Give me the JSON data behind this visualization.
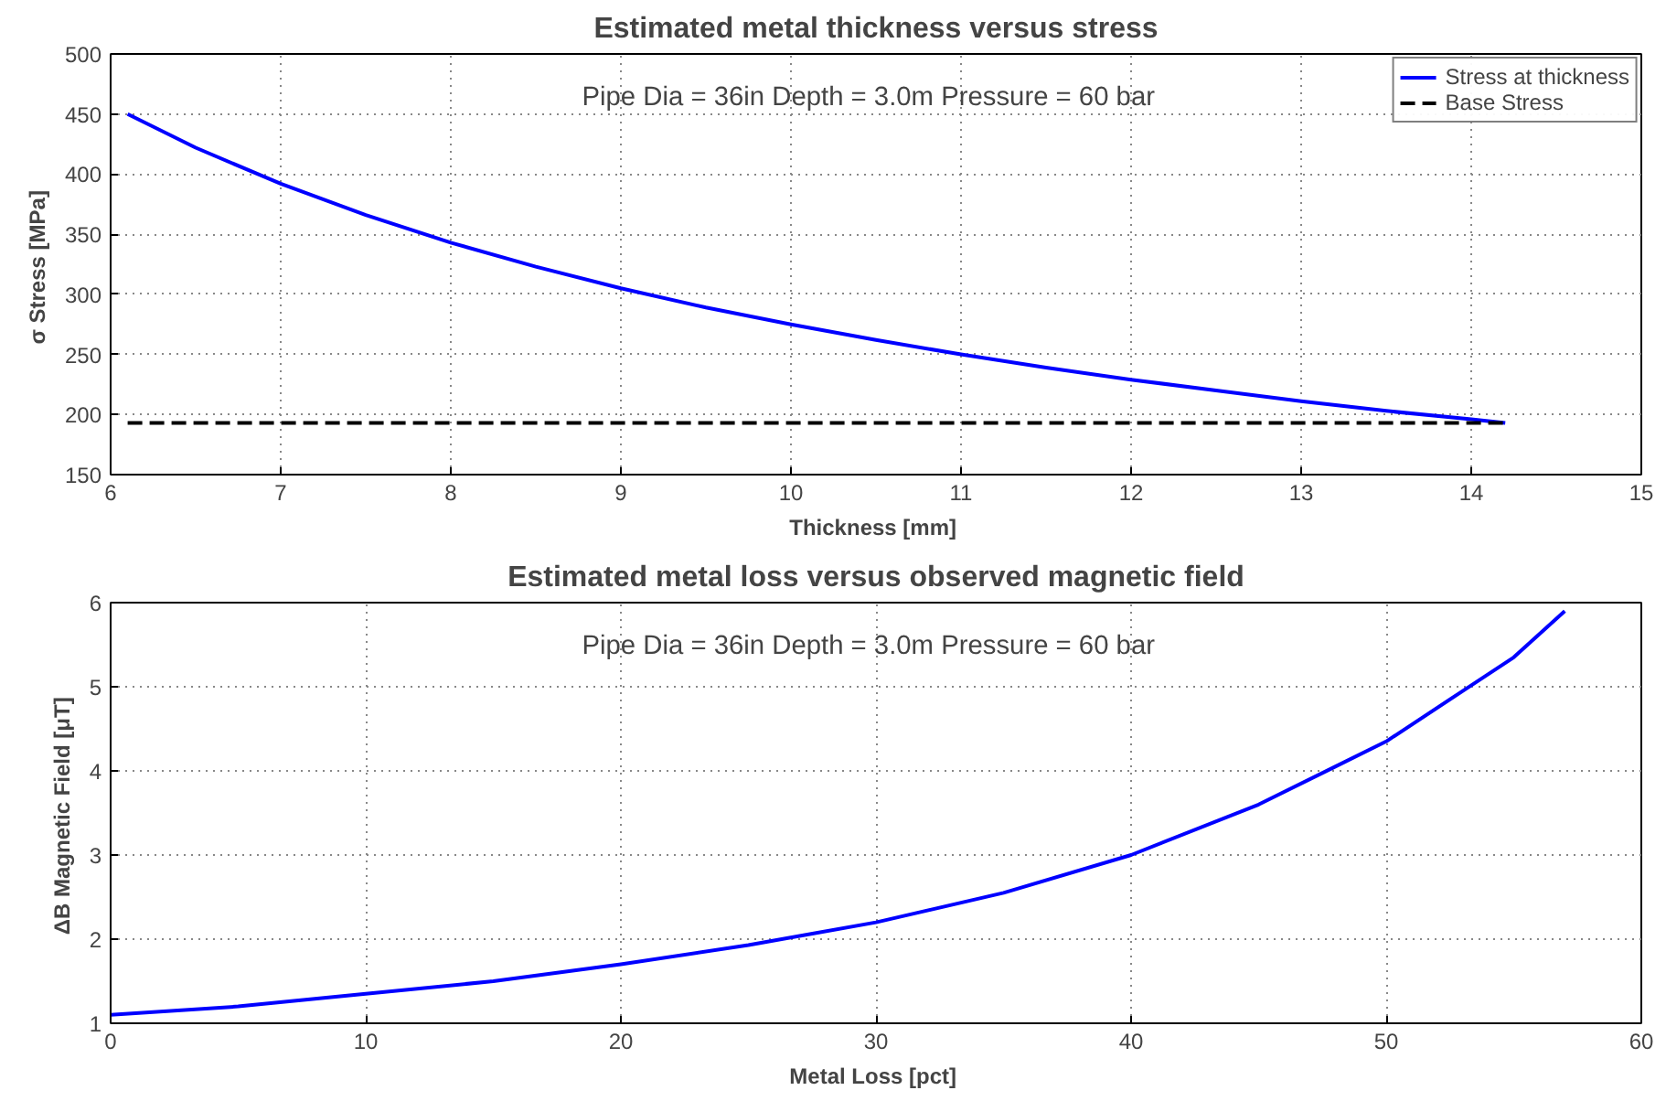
{
  "chart_data": [
    {
      "type": "line",
      "title": "Estimated metal thickness versus stress",
      "xlabel": "Thickness  [mm]",
      "ylabel": "σ Stress  [MPa]",
      "annotations": [
        "Pipe Dia = 36in   Depth = 3.0m   Pressure = 60 bar"
      ],
      "series": [
        {
          "name": "Stress at thickness",
          "color": "#0000ff",
          "line_style": "solid",
          "x": [
            6.1,
            6.5,
            7,
            7.5,
            8,
            8.5,
            9,
            9.5,
            10,
            10.5,
            11,
            11.5,
            12,
            12.5,
            13,
            13.5,
            14,
            14.2
          ],
          "values": [
            450,
            422,
            392,
            366,
            343,
            323,
            305,
            289,
            275,
            262,
            250,
            239,
            229,
            220,
            211,
            203,
            196,
            193
          ]
        },
        {
          "name": "Base Stress",
          "color": "#000000",
          "line_style": "dashed",
          "x": [
            6.1,
            14.2
          ],
          "values": [
            193,
            193
          ]
        }
      ],
      "xlim": [
        6,
        15
      ],
      "xticks": [
        6,
        7,
        8,
        9,
        10,
        11,
        12,
        13,
        14,
        15
      ],
      "ylim": [
        150,
        500
      ],
      "yticks": [
        150,
        200,
        250,
        300,
        350,
        400,
        450,
        500
      ],
      "grid": true,
      "legend": "top right"
    },
    {
      "type": "line",
      "title": "Estimated metal loss versus observed magnetic field",
      "xlabel": "Metal Loss  [pct]",
      "ylabel": "ΔB Magnetic Field  [μT]",
      "annotations": [
        "Pipe Dia = 36in   Depth = 3.0m   Pressure = 60 bar"
      ],
      "series": [
        {
          "color": "#0000ff",
          "line_style": "solid",
          "x": [
            0,
            5,
            10,
            15,
            20,
            25,
            30,
            35,
            40,
            45,
            48,
            50,
            53,
            55,
            57
          ],
          "values": [
            1.1,
            1.2,
            1.35,
            1.5,
            1.7,
            1.93,
            2.2,
            2.55,
            3.0,
            3.6,
            4.05,
            4.35,
            4.95,
            5.35,
            5.9
          ]
        }
      ],
      "xlim": [
        0,
        60
      ],
      "xticks": [
        0,
        10,
        20,
        30,
        40,
        50,
        60
      ],
      "ylim": [
        1,
        6
      ],
      "yticks": [
        1,
        2,
        3,
        4,
        5,
        6
      ],
      "grid": true
    }
  ]
}
